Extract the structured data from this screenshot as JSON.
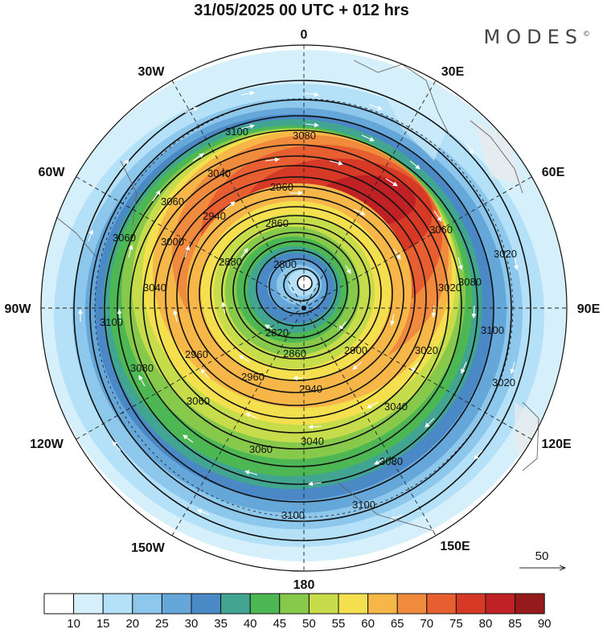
{
  "header": {
    "title": "31/05/2025  00 UTC  + 012 hrs",
    "logo": "MODES",
    "logo_mark": "©"
  },
  "map": {
    "projection": "south-polar-stereographic",
    "longitude_labels": [
      "0",
      "30E",
      "60E",
      "90E",
      "120E",
      "150E",
      "180",
      "150W",
      "120W",
      "90W",
      "60W",
      "30W"
    ],
    "contour_labels": [
      "3080",
      "3100",
      "3040",
      "2960",
      "2940",
      "2860",
      "2880",
      "2800",
      "2820",
      "2900",
      "3000",
      "3060",
      "3020"
    ],
    "vector_reference": "50"
  },
  "colorbar": {
    "ticks": [
      "10",
      "15",
      "20",
      "25",
      "30",
      "35",
      "40",
      "45",
      "50",
      "55",
      "60",
      "65",
      "70",
      "75",
      "80",
      "85",
      "90"
    ],
    "colors": [
      "#ffffff",
      "#d6f0fb",
      "#b5e1f8",
      "#8dc7ec",
      "#66a7da",
      "#4a88c6",
      "#41a592",
      "#4db853",
      "#86c94b",
      "#c6dc4a",
      "#f4e04f",
      "#f6b748",
      "#f08b3d",
      "#e75e30",
      "#d63a27",
      "#bf2125",
      "#941a1c"
    ]
  }
}
